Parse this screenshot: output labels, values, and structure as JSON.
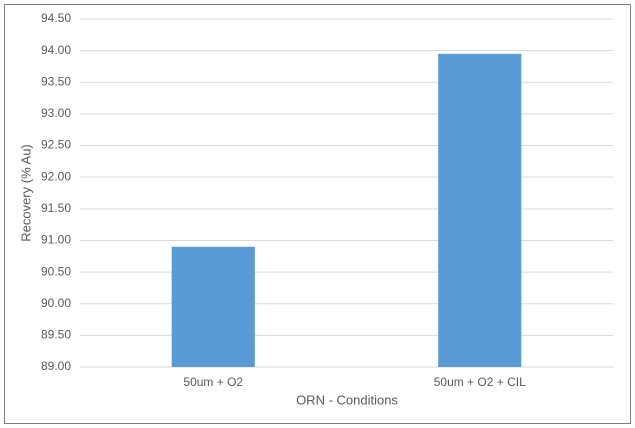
{
  "chart_data": {
    "type": "bar",
    "x_label": "ORN - Conditions",
    "y_label": "Recovery (% Au)",
    "categories": [
      "50um + O2",
      "50um + O2 + CIL"
    ],
    "values": [
      90.9,
      93.95
    ],
    "color": "#5b9bd5",
    "ylim": [
      89,
      94.5
    ],
    "yticks": [
      {
        "value": 89,
        "label": "89.00"
      },
      {
        "value": 89.5,
        "label": "89.50"
      },
      {
        "value": 90,
        "label": "90.00"
      },
      {
        "value": 90.5,
        "label": "90.50"
      },
      {
        "value": 91,
        "label": "91.00"
      },
      {
        "value": 91.5,
        "label": "91.50"
      },
      {
        "value": 92,
        "label": "92.00"
      },
      {
        "value": 92.5,
        "label": "92.50"
      },
      {
        "value": 93,
        "label": "93.00"
      },
      {
        "value": 93.5,
        "label": "93.50"
      },
      {
        "value": 94,
        "label": "94.00"
      },
      {
        "value": 94.5,
        "label": "94.50"
      }
    ],
    "grid": true
  }
}
